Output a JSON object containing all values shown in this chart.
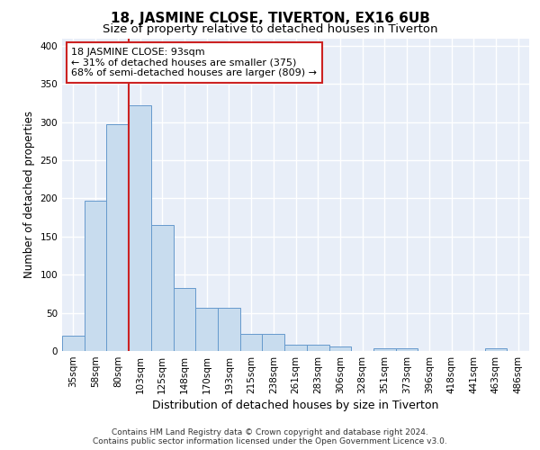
{
  "title1": "18, JASMINE CLOSE, TIVERTON, EX16 6UB",
  "title2": "Size of property relative to detached houses in Tiverton",
  "xlabel": "Distribution of detached houses by size in Tiverton",
  "ylabel": "Number of detached properties",
  "footnote1": "Contains HM Land Registry data © Crown copyright and database right 2024.",
  "footnote2": "Contains public sector information licensed under the Open Government Licence v3.0.",
  "categories": [
    "35sqm",
    "58sqm",
    "80sqm",
    "103sqm",
    "125sqm",
    "148sqm",
    "170sqm",
    "193sqm",
    "215sqm",
    "238sqm",
    "261sqm",
    "283sqm",
    "306sqm",
    "328sqm",
    "351sqm",
    "373sqm",
    "396sqm",
    "418sqm",
    "441sqm",
    "463sqm",
    "486sqm"
  ],
  "values": [
    20,
    197,
    297,
    322,
    165,
    83,
    57,
    57,
    22,
    22,
    8,
    8,
    6,
    0,
    4,
    4,
    0,
    0,
    0,
    4,
    0
  ],
  "bar_color": "#c8dcee",
  "bar_edge_color": "#6699cc",
  "vline_color": "#cc2222",
  "vline_x_index": 2.5,
  "annotation_text": "18 JASMINE CLOSE: 93sqm\n← 31% of detached houses are smaller (375)\n68% of semi-detached houses are larger (809) →",
  "annotation_box_facecolor": "#ffffff",
  "annotation_box_edgecolor": "#cc2222",
  "ylim": [
    0,
    410
  ],
  "yticks": [
    0,
    50,
    100,
    150,
    200,
    250,
    300,
    350,
    400
  ],
  "plot_bg_color": "#e8eef8",
  "grid_color": "#ffffff",
  "fig_bg_color": "#ffffff",
  "title1_fontsize": 11,
  "title2_fontsize": 9.5,
  "xlabel_fontsize": 9,
  "ylabel_fontsize": 8.5,
  "tick_fontsize": 7.5,
  "annotation_fontsize": 8,
  "footnote_fontsize": 6.5
}
